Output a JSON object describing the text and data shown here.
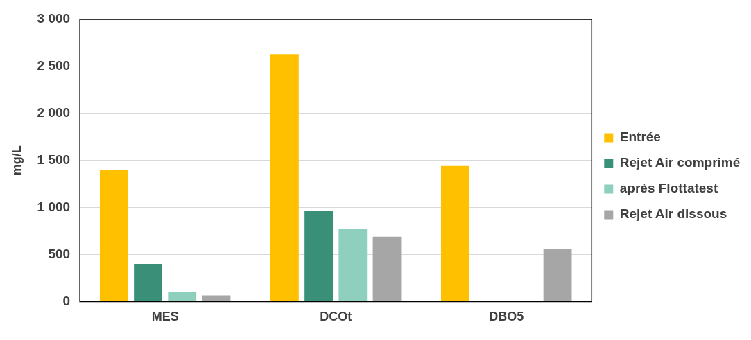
{
  "chart_data": {
    "type": "bar",
    "ylabel": "mg/L",
    "categories": [
      "MES",
      "DCOt",
      "DBO5"
    ],
    "series": [
      {
        "name": "Entrée",
        "color": "#ffc000",
        "values": [
          1400,
          2630,
          1440
        ]
      },
      {
        "name": "Rejet Air comprimé",
        "color": "#3a8f78",
        "values": [
          400,
          960,
          null
        ]
      },
      {
        "name": "après Flottatest",
        "color": "#8fcfbe",
        "values": [
          100,
          770,
          null
        ]
      },
      {
        "name": "Rejet Air dissous",
        "color": "#a6a6a6",
        "values": [
          65,
          690,
          560
        ]
      }
    ],
    "ylim": [
      0,
      3000
    ],
    "yticks": [
      0,
      500,
      {
        "value": 1000,
        "label": "1 000"
      },
      {
        "value": 1500,
        "label": "1 500"
      },
      {
        "value": 2000,
        "label": "2 000"
      },
      {
        "value": 2500,
        "label": "2 500"
      },
      {
        "value": 3000,
        "label": "3 000"
      }
    ],
    "grid": "y",
    "legend": "right"
  }
}
